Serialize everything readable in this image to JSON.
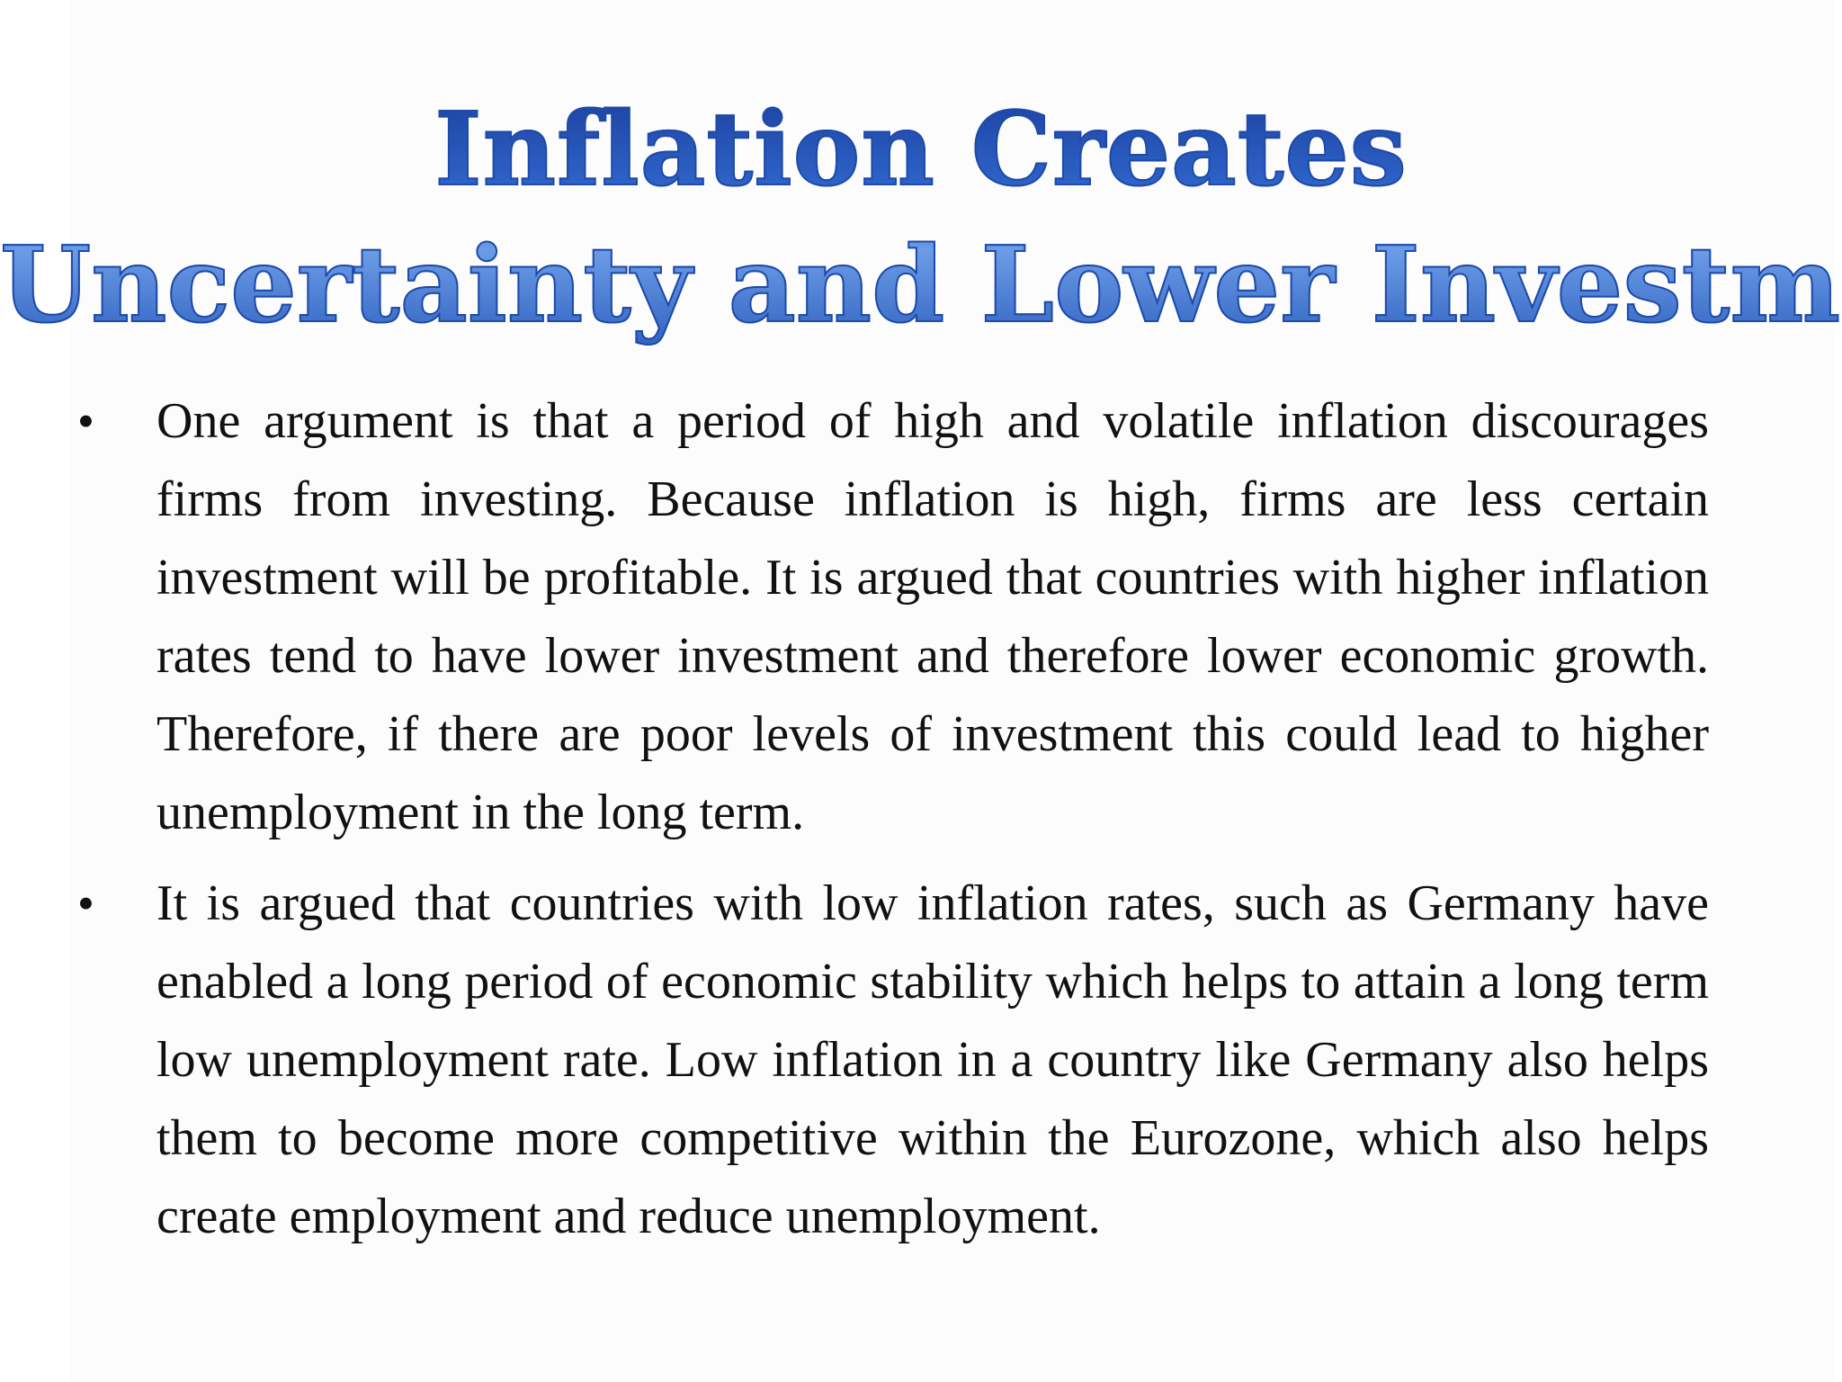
{
  "slide": {
    "title_line1": "Inflation Creates",
    "title_line2": "Uncertainty and Lower Investment",
    "bullets": [
      {
        "marker": "•",
        "text": "One argument is that a period of high and volatile inflation discourages firms from investing. Because inflation is high, firms are less certain investment will be profitable. It is argued that countries with higher inflation rates tend to have lower investment and therefore lower economic growth. Therefore, if there are poor levels of investment this could lead to higher unemployment in the long term."
      },
      {
        "marker": "•",
        "text": "It is argued that countries with low inflation rates, such as Germany have enabled a long period of economic stability which helps to attain a long term low unemployment rate. Low inflation in a country like Germany also helps them to become more competitive within the Eurozone, which also helps create employment and reduce unemployment."
      }
    ],
    "colors": {
      "title_blue": "#2a63c6",
      "title_dark_blue": "#1b3f9c",
      "body_text": "#111111"
    }
  }
}
